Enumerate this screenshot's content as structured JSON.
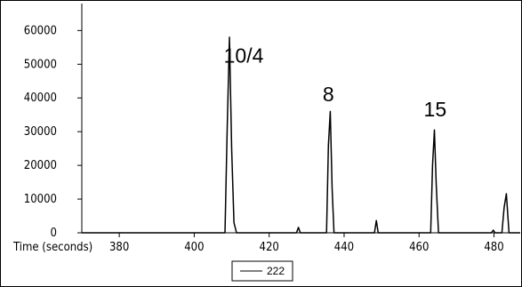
{
  "chart_data": {
    "type": "line",
    "title": "",
    "xlabel": "Time (seconds)",
    "ylabel": "",
    "xlim": [
      370,
      487
    ],
    "ylim": [
      0,
      68000
    ],
    "x_ticks": [
      380,
      400,
      420,
      440,
      460,
      480
    ],
    "y_ticks": [
      0,
      10000,
      20000,
      30000,
      40000,
      50000,
      60000
    ],
    "grid": false,
    "legend_position": "bottom-center",
    "line_color": "#000000",
    "series": [
      {
        "name": "222",
        "x": [
          370,
          408.2,
          408.8,
          409.4,
          410.0,
          410.6,
          411.3,
          427.3,
          427.8,
          428.3,
          435.3,
          435.8,
          436.3,
          436.8,
          437.3,
          448.1,
          448.6,
          449.1,
          463.1,
          463.6,
          464.1,
          464.6,
          465.2,
          479.3,
          479.8,
          480.3,
          482.1,
          482.7,
          483.3,
          484.0,
          487
        ],
        "y": [
          0,
          0,
          31000,
          58000,
          25000,
          3000,
          0,
          0,
          1600,
          0,
          0,
          26000,
          36000,
          13000,
          0,
          0,
          3600,
          0,
          0,
          20000,
          30500,
          14000,
          0,
          0,
          800,
          0,
          0,
          7500,
          11600,
          0,
          0
        ]
      }
    ],
    "annotations": [
      {
        "text": "10/4",
        "x": 413.2,
        "y": 50500
      },
      {
        "text": "8",
        "x": 435.8,
        "y": 39000
      },
      {
        "text": "15",
        "x": 464.3,
        "y": 34500
      }
    ]
  }
}
